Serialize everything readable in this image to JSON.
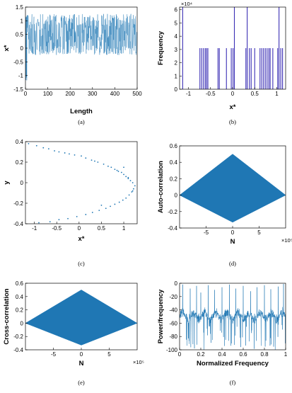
{
  "figure": {
    "panels": [
      {
        "id": "a",
        "caption": "(a)"
      },
      {
        "id": "b",
        "caption": "(b)"
      },
      {
        "id": "c",
        "caption": "(c)"
      },
      {
        "id": "d",
        "caption": "(d)"
      },
      {
        "id": "e",
        "caption": "(e)"
      },
      {
        "id": "f",
        "caption": "(f)"
      }
    ]
  },
  "colors": {
    "series": "#1f77b4",
    "bar": "#3b2fb5",
    "axis": "#000000"
  },
  "chart_data": [
    {
      "panel": "a",
      "type": "line",
      "title": "",
      "xlabel": "Length",
      "ylabel": "x*",
      "xlim": [
        0,
        500
      ],
      "ylim": [
        -1.5,
        1.5
      ],
      "xticks": [
        0,
        100,
        200,
        300,
        400,
        500
      ],
      "yticks": [
        -1.5,
        -1,
        -0.5,
        0,
        0.5,
        1,
        1.5
      ],
      "xtick_labels": [
        "0",
        "100",
        "200",
        "300",
        "400",
        "500"
      ],
      "ytick_labels": [
        "-1.5",
        "-1",
        "-0.5",
        "0",
        "0.5",
        "1",
        "1.5"
      ],
      "series": [
        {
          "description": "dense oscillating chaotic sequence between about -0.2 and 1.2, with an initial transient reaching -1.2",
          "x_range": [
            0,
            500
          ],
          "y_range": [
            -0.25,
            1.25
          ],
          "transient_min": -1.2
        }
      ],
      "grid": false
    },
    {
      "panel": "b",
      "type": "bar",
      "title": "",
      "xlabel": "x*",
      "ylabel": "Frequency",
      "exponent_label": "×10⁴",
      "xlim": [
        -1.2,
        1.2
      ],
      "ylim": [
        0,
        6.2
      ],
      "xticks": [
        -1,
        -0.5,
        0,
        0.5,
        1
      ],
      "yticks": [
        0,
        1,
        2,
        3,
        4,
        5,
        6
      ],
      "xtick_labels": [
        "-1",
        "-0.5",
        "0",
        "0.5",
        "1"
      ],
      "ytick_labels": [
        "0",
        "1",
        "2",
        "3",
        "4",
        "5",
        "6"
      ],
      "x": [
        -1.13,
        -0.74,
        -0.7,
        -0.66,
        -0.62,
        -0.59,
        -0.56,
        -0.33,
        -0.3,
        -0.14,
        -0.03,
        0.01,
        0.04,
        0.3,
        0.33,
        0.38,
        0.42,
        0.5,
        0.62,
        0.66,
        0.7,
        0.74,
        0.78,
        0.82,
        0.85,
        0.91,
        1.02,
        1.05,
        1.09,
        1.13
      ],
      "values": [
        6.2,
        3.1,
        3.1,
        3.1,
        3.1,
        3.1,
        3.1,
        3.1,
        3.1,
        3.1,
        3.1,
        3.1,
        6.2,
        3.1,
        6.2,
        3.1,
        3.1,
        3.1,
        3.1,
        3.1,
        3.1,
        3.1,
        3.1,
        3.1,
        3.1,
        3.1,
        3.1,
        6.2,
        3.1,
        3.1
      ],
      "grid": false
    },
    {
      "panel": "c",
      "type": "scatter",
      "title": "",
      "xlabel": "x*",
      "ylabel": "y",
      "xlim": [
        -1.2,
        1.3
      ],
      "ylim": [
        -0.4,
        0.4
      ],
      "xticks": [
        -1,
        -0.5,
        0,
        0.5,
        1
      ],
      "yticks": [
        -0.4,
        -0.2,
        0,
        0.2,
        0.4
      ],
      "xtick_labels": [
        "-1",
        "-0.5",
        "0",
        "0.5",
        "1"
      ],
      "ytick_labels": [
        "-0.4",
        "-0.2",
        "0",
        "0.2",
        "0.4"
      ],
      "x": [
        -1.13,
        -0.95,
        -0.8,
        -0.68,
        -0.55,
        -0.45,
        -0.32,
        -0.22,
        -0.1,
        0.05,
        0.15,
        0.28,
        0.42,
        0.55,
        0.65,
        0.72,
        0.8,
        0.88,
        0.95,
        1.0,
        1.05,
        1.1,
        1.15,
        1.2,
        1.25,
        1.22,
        1.18,
        1.12,
        1.05,
        0.98,
        0.9,
        0.8,
        0.7,
        0.6,
        0.45,
        0.3,
        0.15,
        -0.05,
        -0.25,
        -0.45,
        -0.65,
        -0.9,
        0.5,
        0.85,
        1.0,
        1.1,
        1.2,
        0.35
      ],
      "y": [
        0.38,
        0.36,
        0.34,
        0.33,
        0.31,
        0.3,
        0.29,
        0.28,
        0.27,
        0.26,
        0.24,
        0.22,
        0.2,
        0.18,
        0.16,
        0.15,
        0.13,
        0.11,
        0.1,
        0.08,
        0.06,
        0.04,
        0.02,
        0.0,
        -0.03,
        -0.06,
        -0.09,
        -0.12,
        -0.15,
        -0.17,
        -0.19,
        -0.21,
        -0.23,
        -0.25,
        -0.27,
        -0.29,
        -0.31,
        -0.33,
        -0.35,
        -0.36,
        -0.38,
        -0.39,
        -0.22,
        0.12,
        0.15,
        0.05,
        -0.08,
        0.21
      ],
      "grid": false
    },
    {
      "panel": "d",
      "type": "area",
      "title": "",
      "xlabel": "N",
      "ylabel": "Auto-correlation",
      "exponent_label": "×10⁵",
      "xlim": [
        -10,
        10
      ],
      "ylim": [
        -0.4,
        0.6
      ],
      "xticks": [
        -5,
        0,
        5
      ],
      "yticks": [
        -0.4,
        -0.2,
        0,
        0.2,
        0.4,
        0.6
      ],
      "xtick_labels": [
        "-5",
        "0",
        "5"
      ],
      "ytick_labels": [
        "-0.4",
        "-0.2",
        "0",
        "0.2",
        "0.4",
        "0.6"
      ],
      "x": [
        -10,
        0,
        10
      ],
      "upper": [
        0,
        0.5,
        0
      ],
      "lower": [
        0,
        -0.33,
        0
      ],
      "grid": false
    },
    {
      "panel": "e",
      "type": "area",
      "title": "",
      "xlabel": "N",
      "ylabel": "Cross-correlation",
      "exponent_label": "×10⁵",
      "xlim": [
        -10,
        10
      ],
      "ylim": [
        -0.4,
        0.6
      ],
      "xticks": [
        -5,
        0,
        5
      ],
      "yticks": [
        -0.4,
        -0.2,
        0,
        0.2,
        0.4,
        0.6
      ],
      "xtick_labels": [
        "-5",
        "0",
        "5"
      ],
      "ytick_labels": [
        "-0.4",
        "-0.2",
        "0",
        "0.2",
        "0.4",
        "0.6"
      ],
      "x": [
        -10,
        0,
        10
      ],
      "upper": [
        0,
        0.5,
        0
      ],
      "lower": [
        0,
        -0.33,
        0
      ],
      "grid": false
    },
    {
      "panel": "f",
      "type": "line",
      "title": "",
      "xlabel": "Normalized Frequency",
      "ylabel": "Power/frequency",
      "xlim": [
        0,
        1
      ],
      "ylim": [
        -100,
        0
      ],
      "xticks": [
        0,
        0.2,
        0.4,
        0.6,
        0.8,
        1
      ],
      "yticks": [
        -100,
        -80,
        -60,
        -40,
        -20,
        0
      ],
      "xtick_labels": [
        "0",
        "0.2",
        "0.4",
        "0.6",
        "0.8",
        "1"
      ],
      "ytick_labels": [
        "-100",
        "-80",
        "-60",
        "-40",
        "-20",
        "0"
      ],
      "baseline_level": -45,
      "peaks": [
        {
          "x": 0.03,
          "y": -2
        },
        {
          "x": 0.1,
          "y": -8
        },
        {
          "x": 0.16,
          "y": -4
        },
        {
          "x": 0.2,
          "y": -14
        },
        {
          "x": 0.27,
          "y": -3
        },
        {
          "x": 0.33,
          "y": -10
        },
        {
          "x": 0.4,
          "y": -6
        },
        {
          "x": 0.47,
          "y": -2
        },
        {
          "x": 0.53,
          "y": -8
        },
        {
          "x": 0.6,
          "y": -4
        },
        {
          "x": 0.67,
          "y": -12
        },
        {
          "x": 0.73,
          "y": -6
        },
        {
          "x": 0.8,
          "y": -3
        },
        {
          "x": 0.86,
          "y": -9
        },
        {
          "x": 0.93,
          "y": -5
        },
        {
          "x": 0.98,
          "y": -1
        }
      ],
      "grid": false
    }
  ]
}
